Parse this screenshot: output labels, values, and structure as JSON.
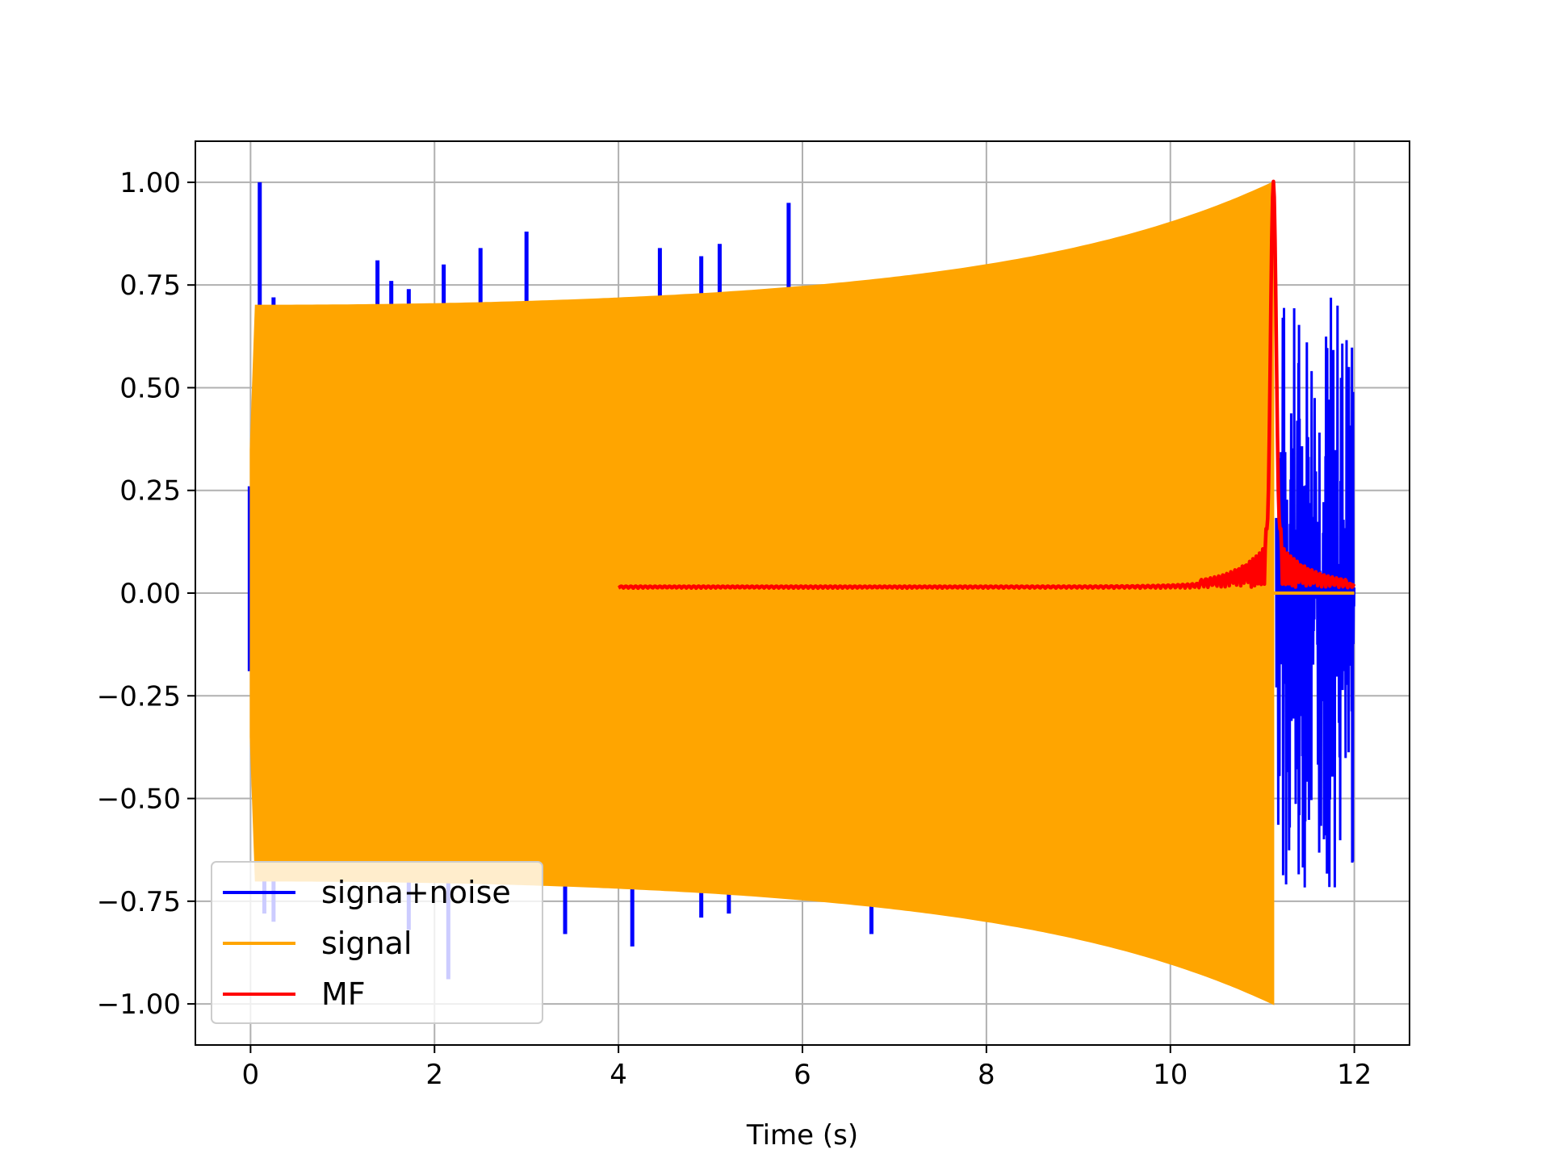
{
  "chart_data": {
    "type": "line",
    "title": "",
    "xlabel": "Time (s)",
    "ylabel": "",
    "xlim": [
      -0.6,
      12.6
    ],
    "ylim": [
      -1.1,
      1.1
    ],
    "xticks": [
      "0",
      "2",
      "4",
      "6",
      "8",
      "10",
      "12"
    ],
    "xtick_values": [
      0,
      2,
      4,
      6,
      8,
      10,
      12
    ],
    "yticks": [
      "1.00",
      "0.75",
      "0.50",
      "0.25",
      "0.00",
      "−0.25",
      "−0.50",
      "−0.75",
      "−1.00"
    ],
    "ytick_values": [
      1.0,
      0.75,
      0.5,
      0.25,
      0.0,
      -0.25,
      -0.5,
      -0.75,
      -1.0
    ],
    "grid": true,
    "legend_position": "lower-left",
    "series": [
      {
        "name": "signa+noise",
        "color": "#0000ff",
        "x_range": [
          0,
          12
        ],
        "spikes": [
          {
            "x": 0.1,
            "y": 1.0
          },
          {
            "x": 0.25,
            "y": 0.72
          },
          {
            "x": 1.38,
            "y": 0.81
          },
          {
            "x": 1.53,
            "y": 0.76
          },
          {
            "x": 1.72,
            "y": 0.74
          },
          {
            "x": 2.1,
            "y": 0.8
          },
          {
            "x": 2.5,
            "y": 0.84
          },
          {
            "x": 3.0,
            "y": 0.88
          },
          {
            "x": 4.45,
            "y": 0.84
          },
          {
            "x": 4.9,
            "y": 0.82
          },
          {
            "x": 5.1,
            "y": 0.85
          },
          {
            "x": 5.85,
            "y": 0.95
          },
          {
            "x": 0.15,
            "y": -0.78
          },
          {
            "x": 0.25,
            "y": -0.8
          },
          {
            "x": 1.72,
            "y": -0.82
          },
          {
            "x": 2.15,
            "y": -0.94
          },
          {
            "x": 3.42,
            "y": -0.83
          },
          {
            "x": 4.15,
            "y": -0.86
          },
          {
            "x": 4.9,
            "y": -0.79
          },
          {
            "x": 5.2,
            "y": -0.78
          },
          {
            "x": 6.75,
            "y": -0.83
          }
        ],
        "tail_envelope": {
          "x_range": [
            11.15,
            12.0
          ],
          "y_max": 0.76,
          "y_min": -0.73
        }
      },
      {
        "name": "signal",
        "color": "#ffa500",
        "x_range": [
          0,
          11.12
        ],
        "envelope_start": 0.7,
        "envelope_end": 1.0,
        "after_end": 0.0
      },
      {
        "name": "MF",
        "color": "#ff0000",
        "x_range": [
          4,
          12
        ],
        "peak": {
          "x": 11.12,
          "y": 1.0
        },
        "baseline": 0.0
      }
    ]
  }
}
